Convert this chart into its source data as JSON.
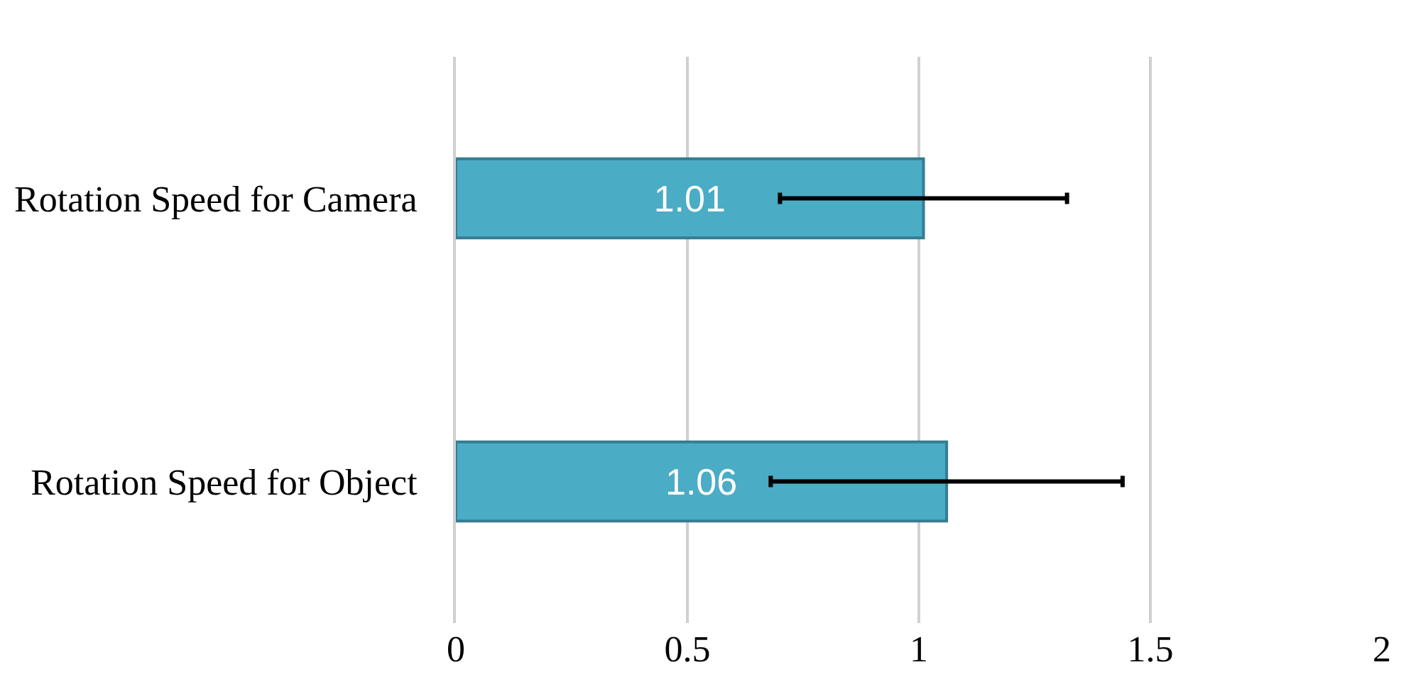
{
  "chart_data": {
    "type": "bar",
    "orientation": "horizontal",
    "categories": [
      "Rotation Speed for Camera",
      "Rotation Speed for Object"
    ],
    "values": [
      1.01,
      1.06
    ],
    "color": "#4bacc6",
    "errors": [
      0.31,
      0.38
    ],
    "xlim": [
      0,
      2
    ],
    "xticks": [
      0,
      0.5,
      1,
      1.5,
      2
    ],
    "grid": "x",
    "data_labels": true
  }
}
